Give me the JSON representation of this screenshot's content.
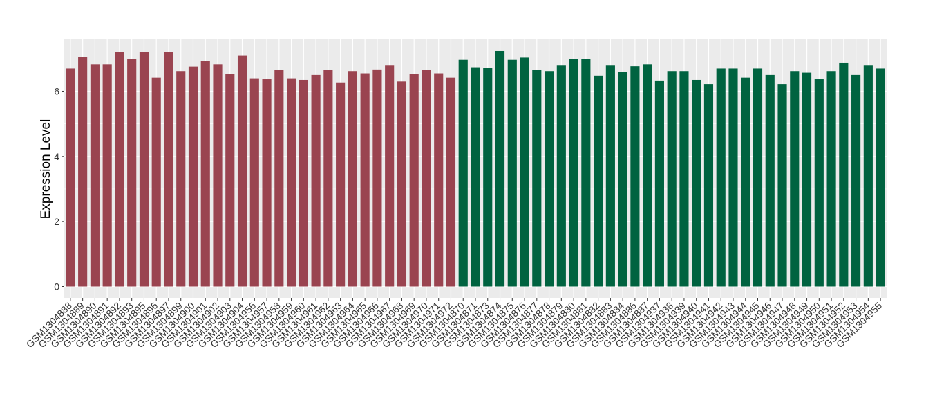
{
  "chart_data": {
    "type": "bar",
    "title": "",
    "xlabel": "",
    "ylabel": "Expression Level",
    "ylim": [
      -0.35,
      7.6
    ],
    "yticks": [
      0,
      2,
      4,
      6
    ],
    "grid": true,
    "legend": "none",
    "colors": {
      "panel_background": "#ebebeb",
      "gridline": "#ffffff",
      "group_1": "#9a4450",
      "group_2": "#006340"
    },
    "categories": [
      "GSM1304888",
      "GSM1304889",
      "GSM1304890",
      "GSM1304891",
      "GSM1304892",
      "GSM1304893",
      "GSM1304895",
      "GSM1304896",
      "GSM1304897",
      "GSM1304899",
      "GSM1304900",
      "GSM1304901",
      "GSM1304902",
      "GSM1304903",
      "GSM1304904",
      "GSM1304956",
      "GSM1304957",
      "GSM1304958",
      "GSM1304959",
      "GSM1304960",
      "GSM1304961",
      "GSM1304962",
      "GSM1304963",
      "GSM1304964",
      "GSM1304965",
      "GSM1304966",
      "GSM1304967",
      "GSM1304968",
      "GSM1304969",
      "GSM1304970",
      "GSM1304971",
      "GSM1304972",
      "GSM1304870",
      "GSM1304871",
      "GSM1304873",
      "GSM1304874",
      "GSM1304875",
      "GSM1304876",
      "GSM1304877",
      "GSM1304878",
      "GSM1304879",
      "GSM1304880",
      "GSM1304881",
      "GSM1304882",
      "GSM1304883",
      "GSM1304884",
      "GSM1304886",
      "GSM1304887",
      "GSM1304937",
      "GSM1304938",
      "GSM1304939",
      "GSM1304940",
      "GSM1304941",
      "GSM1304942",
      "GSM1304943",
      "GSM1304944",
      "GSM1304945",
      "GSM1304946",
      "GSM1304947",
      "GSM1304948",
      "GSM1304949",
      "GSM1304950",
      "GSM1304951",
      "GSM1304952",
      "GSM1304953",
      "GSM1304954",
      "GSM1304955"
    ],
    "values": [
      6.7,
      7.06,
      6.83,
      6.83,
      7.2,
      7.0,
      7.2,
      6.42,
      7.2,
      6.62,
      6.76,
      6.93,
      6.83,
      6.52,
      7.1,
      6.4,
      6.37,
      6.65,
      6.4,
      6.35,
      6.5,
      6.65,
      6.27,
      6.62,
      6.55,
      6.67,
      6.81,
      6.3,
      6.52,
      6.65,
      6.55,
      6.42,
      6.97,
      6.74,
      6.72,
      7.24,
      6.97,
      7.04,
      6.65,
      6.62,
      6.81,
      6.99,
      7.0,
      6.48,
      6.81,
      6.6,
      6.77,
      6.83,
      6.33,
      6.62,
      6.62,
      6.35,
      6.22,
      6.7,
      6.7,
      6.42,
      6.7,
      6.5,
      6.22,
      6.62,
      6.57,
      6.37,
      6.62,
      6.88,
      6.5,
      6.81,
      6.7
    ],
    "group_of_bar": [
      1,
      1,
      1,
      1,
      1,
      1,
      1,
      1,
      1,
      1,
      1,
      1,
      1,
      1,
      1,
      1,
      1,
      1,
      1,
      1,
      1,
      1,
      1,
      1,
      1,
      1,
      1,
      1,
      1,
      1,
      1,
      1,
      2,
      2,
      2,
      2,
      2,
      2,
      2,
      2,
      2,
      2,
      2,
      2,
      2,
      2,
      2,
      2,
      2,
      2,
      2,
      2,
      2,
      2,
      2,
      2,
      2,
      2,
      2,
      2,
      2,
      2,
      2,
      2,
      2,
      2,
      2
    ]
  }
}
